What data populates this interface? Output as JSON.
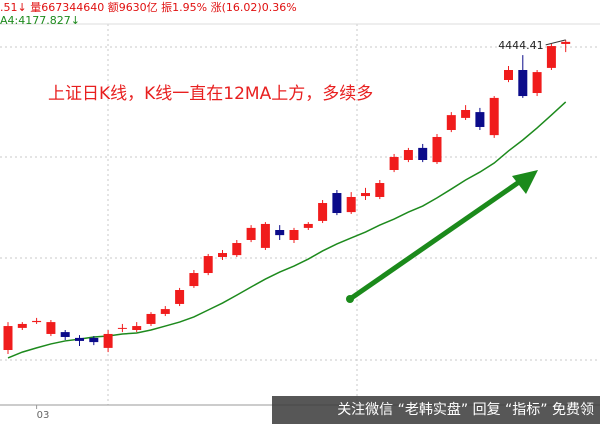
{
  "chart_data": {
    "type": "candlestick",
    "header": ".51↓ 量667344640 额9630亿 振1.95% 涨(16.02)0.36%",
    "ma_label": "A4:4177.827↓",
    "annotation": "上证日K线，K线一直在12MA上方，多续多",
    "watermark": "关注微信 “老韩实盘” 回复 “指标” 免费领",
    "categories": [
      null,
      null,
      "03",
      null,
      null,
      null,
      null,
      null,
      null,
      null,
      null,
      null,
      null,
      null,
      null,
      null,
      null,
      null,
      null,
      null,
      null,
      null,
      null,
      null,
      null,
      null,
      null,
      null,
      null,
      null,
      null,
      null,
      null,
      null,
      null,
      null,
      null,
      null,
      null,
      null
    ],
    "open": [
      3111,
      3206,
      3231,
      3180,
      3188,
      3163,
      3163,
      3120,
      3206,
      3197,
      3223,
      3266,
      3309,
      3386,
      3442,
      3511,
      3519,
      3584,
      3550,
      3627,
      3584,
      3636,
      3666,
      3786,
      3704,
      3773,
      3769,
      3885,
      3928,
      3980,
      3919,
      4057,
      4109,
      4134,
      4035,
      4272,
      4315,
      4216,
      4324,
      4427
    ],
    "high": [
      3231,
      3231,
      3249,
      3240,
      3197,
      3175,
      3171,
      3197,
      3223,
      3231,
      3274,
      3300,
      3378,
      3455,
      3524,
      3541,
      3584,
      3648,
      3661,
      3648,
      3636,
      3661,
      3756,
      3799,
      3790,
      3808,
      3842,
      3954,
      3980,
      3997,
      4040,
      4134,
      4164,
      4152,
      4203,
      4332,
      4379,
      4315,
      4427,
      4444.41
    ],
    "low": [
      3094,
      3197,
      3223,
      3171,
      3154,
      3128,
      3132,
      3102,
      3188,
      3188,
      3214,
      3257,
      3300,
      3378,
      3433,
      3498,
      3511,
      3575,
      3541,
      3584,
      3571,
      3627,
      3657,
      3691,
      3696,
      3756,
      3760,
      3876,
      3919,
      3919,
      3911,
      4048,
      4100,
      4057,
      4023,
      4263,
      4195,
      4203,
      4315,
      4392
    ],
    "close": [
      3214,
      3223,
      3236,
      3231,
      3167,
      3150,
      3145,
      3180,
      3206,
      3214,
      3266,
      3287,
      3369,
      3442,
      3515,
      3528,
      3571,
      3636,
      3653,
      3605,
      3627,
      3653,
      3743,
      3700,
      3769,
      3786,
      3829,
      3941,
      3971,
      3928,
      4027,
      4121,
      4143,
      4070,
      4195,
      4315,
      4203,
      4306,
      4418,
      4436
    ],
    "ma": [
      3077,
      3102,
      3120,
      3137,
      3150,
      3158,
      3167,
      3171,
      3180,
      3184,
      3197,
      3214,
      3231,
      3253,
      3283,
      3313,
      3347,
      3382,
      3416,
      3446,
      3472,
      3502,
      3537,
      3567,
      3593,
      3618,
      3648,
      3674,
      3704,
      3730,
      3765,
      3803,
      3842,
      3876,
      3915,
      3967,
      4014,
      4066,
      4121,
      4177.827
    ],
    "up_color": "#f01c1c",
    "down_color": "#0b0b8a",
    "ma_color": "#1d8a1d",
    "ylim": [
      2874.5,
      4616
    ],
    "grid": true
  }
}
